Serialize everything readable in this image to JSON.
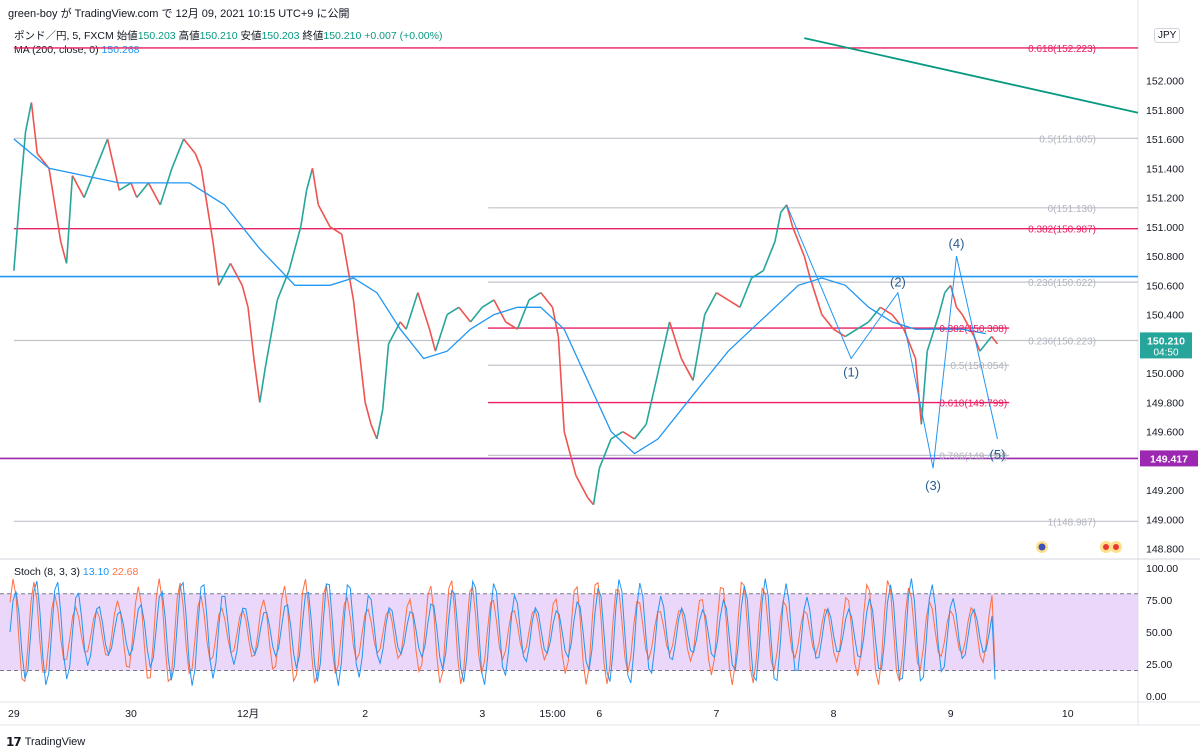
{
  "header": {
    "author": "green-boy",
    "text": "green-boy が TradingView.com で 12月 09, 2021 10:15 UTC+9 に公開"
  },
  "legend": {
    "symbol": "ポンド／円, 5, FXCM",
    "open_label": "始値",
    "open": "150.203",
    "high_label": "高値",
    "high": "150.210",
    "low_label": "安値",
    "low": "150.203",
    "close_label": "終値",
    "close": "150.210",
    "change": "+0.007 (+0.00%)",
    "ma_label": "MA (200, close, 0)",
    "ma_value": "150.268"
  },
  "currency": "JPY",
  "stoch_legend": {
    "label": "Stoch (8, 3, 3)",
    "k": "13.10",
    "d": "22.68"
  },
  "footer": {
    "brand": "TradingView"
  },
  "colors": {
    "up": "#26a69a",
    "down": "#ef5350",
    "ma": "#2196f3",
    "fib_red": "#e91e63",
    "fib_gray": "#b2b5be",
    "trend": "#089981",
    "level": "#9c27b0",
    "hline_blue": "#2196f3",
    "stoch_k": "#2196f3",
    "stoch_d": "#ff7043"
  },
  "chart_data": [
    {
      "type": "line",
      "title": "ポンド／円, 5, FXCM",
      "y_axis": {
        "range": [
          148.75,
          152.4
        ],
        "ticks": [
          "148.800",
          "149.000",
          "149.200",
          "149.400",
          "149.600",
          "149.800",
          "150.000",
          "150.200",
          "150.400",
          "150.600",
          "150.800",
          "151.000",
          "151.200",
          "151.400",
          "151.600",
          "151.800",
          "152.000"
        ]
      },
      "x_ticks": [
        {
          "label": "29",
          "x": 0.0
        },
        {
          "label": "30",
          "x": 1.0
        },
        {
          "label": "12月",
          "x": 2.0
        },
        {
          "label": "2",
          "x": 3.0
        },
        {
          "label": "3",
          "x": 4.0
        },
        {
          "label": "15:00",
          "x": 4.6
        },
        {
          "label": "6",
          "x": 5.0
        },
        {
          "label": "7",
          "x": 6.0
        },
        {
          "label": "8",
          "x": 7.0
        },
        {
          "label": "9",
          "x": 8.0
        },
        {
          "label": "10",
          "x": 9.0
        }
      ],
      "x_range": [
        -0.05,
        9.6
      ],
      "series": [
        {
          "name": "price",
          "points": [
            [
              0.0,
              150.7
            ],
            [
              0.05,
              151.2
            ],
            [
              0.1,
              151.65
            ],
            [
              0.15,
              151.85
            ],
            [
              0.2,
              151.5
            ],
            [
              0.3,
              151.4
            ],
            [
              0.4,
              150.9
            ],
            [
              0.45,
              150.75
            ],
            [
              0.5,
              151.35
            ],
            [
              0.6,
              151.2
            ],
            [
              0.7,
              151.4
            ],
            [
              0.8,
              151.6
            ],
            [
              0.9,
              151.25
            ],
            [
              1.0,
              151.3
            ],
            [
              1.05,
              151.2
            ],
            [
              1.15,
              151.3
            ],
            [
              1.25,
              151.15
            ],
            [
              1.35,
              151.4
            ],
            [
              1.45,
              151.6
            ],
            [
              1.55,
              151.5
            ],
            [
              1.6,
              151.4
            ],
            [
              1.7,
              150.9
            ],
            [
              1.75,
              150.6
            ],
            [
              1.85,
              150.75
            ],
            [
              1.95,
              150.6
            ],
            [
              2.0,
              150.45
            ],
            [
              2.05,
              150.1
            ],
            [
              2.1,
              149.8
            ],
            [
              2.15,
              150.05
            ],
            [
              2.25,
              150.5
            ],
            [
              2.35,
              150.7
            ],
            [
              2.45,
              151.0
            ],
            [
              2.5,
              151.25
            ],
            [
              2.55,
              151.4
            ],
            [
              2.6,
              151.15
            ],
            [
              2.7,
              151.0
            ],
            [
              2.8,
              150.95
            ],
            [
              2.9,
              150.5
            ],
            [
              2.95,
              150.15
            ],
            [
              3.0,
              149.8
            ],
            [
              3.05,
              149.65
            ],
            [
              3.1,
              149.55
            ],
            [
              3.15,
              149.75
            ],
            [
              3.2,
              150.2
            ],
            [
              3.3,
              150.35
            ],
            [
              3.35,
              150.3
            ],
            [
              3.45,
              150.55
            ],
            [
              3.55,
              150.3
            ],
            [
              3.6,
              150.15
            ],
            [
              3.7,
              150.4
            ],
            [
              3.8,
              150.45
            ],
            [
              3.9,
              150.35
            ],
            [
              4.0,
              150.45
            ],
            [
              4.1,
              150.5
            ],
            [
              4.2,
              150.35
            ],
            [
              4.3,
              150.3
            ],
            [
              4.4,
              150.5
            ],
            [
              4.5,
              150.55
            ],
            [
              4.6,
              150.45
            ],
            [
              4.65,
              150.25
            ],
            [
              4.7,
              149.6
            ],
            [
              4.8,
              149.3
            ],
            [
              4.9,
              149.15
            ],
            [
              4.95,
              149.1
            ],
            [
              5.0,
              149.35
            ],
            [
              5.1,
              149.55
            ],
            [
              5.2,
              149.6
            ],
            [
              5.3,
              149.55
            ],
            [
              5.4,
              149.65
            ],
            [
              5.5,
              150.0
            ],
            [
              5.6,
              150.35
            ],
            [
              5.7,
              150.1
            ],
            [
              5.8,
              149.95
            ],
            [
              5.9,
              150.4
            ],
            [
              6.0,
              150.55
            ],
            [
              6.1,
              150.5
            ],
            [
              6.2,
              150.45
            ],
            [
              6.3,
              150.65
            ],
            [
              6.4,
              150.7
            ],
            [
              6.5,
              150.9
            ],
            [
              6.55,
              151.1
            ],
            [
              6.6,
              151.15
            ],
            [
              6.65,
              151.0
            ],
            [
              6.75,
              150.8
            ],
            [
              6.8,
              150.65
            ],
            [
              6.9,
              150.4
            ],
            [
              7.0,
              150.3
            ],
            [
              7.1,
              150.25
            ],
            [
              7.2,
              150.3
            ],
            [
              7.3,
              150.35
            ],
            [
              7.4,
              150.45
            ],
            [
              7.5,
              150.4
            ],
            [
              7.6,
              150.3
            ],
            [
              7.7,
              150.1
            ],
            [
              7.75,
              149.65
            ],
            [
              7.8,
              150.15
            ],
            [
              7.9,
              150.4
            ],
            [
              7.95,
              150.55
            ],
            [
              8.0,
              150.6
            ],
            [
              8.05,
              150.45
            ],
            [
              8.1,
              150.4
            ],
            [
              8.2,
              150.25
            ],
            [
              8.25,
              150.15
            ],
            [
              8.3,
              150.2
            ],
            [
              8.35,
              150.25
            ],
            [
              8.4,
              150.2
            ]
          ]
        },
        {
          "name": "MA (200, close, 0)",
          "points": [
            [
              0.0,
              151.6
            ],
            [
              0.3,
              151.4
            ],
            [
              0.6,
              151.35
            ],
            [
              0.9,
              151.3
            ],
            [
              1.2,
              151.3
            ],
            [
              1.5,
              151.3
            ],
            [
              1.8,
              151.15
            ],
            [
              2.1,
              150.85
            ],
            [
              2.4,
              150.6
            ],
            [
              2.7,
              150.6
            ],
            [
              2.9,
              150.65
            ],
            [
              3.1,
              150.55
            ],
            [
              3.3,
              150.3
            ],
            [
              3.5,
              150.1
            ],
            [
              3.7,
              150.15
            ],
            [
              3.9,
              150.3
            ],
            [
              4.1,
              150.4
            ],
            [
              4.3,
              150.45
            ],
            [
              4.5,
              150.45
            ],
            [
              4.7,
              150.3
            ],
            [
              4.9,
              149.95
            ],
            [
              5.1,
              149.6
            ],
            [
              5.3,
              149.45
            ],
            [
              5.5,
              149.55
            ],
            [
              5.7,
              149.75
            ],
            [
              5.9,
              149.95
            ],
            [
              6.1,
              150.15
            ],
            [
              6.3,
              150.3
            ],
            [
              6.5,
              150.45
            ],
            [
              6.7,
              150.6
            ],
            [
              6.9,
              150.65
            ],
            [
              7.1,
              150.6
            ],
            [
              7.3,
              150.45
            ],
            [
              7.5,
              150.35
            ],
            [
              7.7,
              150.3
            ],
            [
              7.9,
              150.3
            ],
            [
              8.1,
              150.3
            ],
            [
              8.3,
              150.27
            ]
          ]
        },
        {
          "name": "wave",
          "labels": [
            "(1)",
            "(2)",
            "(3)",
            "(4)",
            "(5)"
          ],
          "points": [
            [
              6.6,
              151.15
            ],
            [
              7.15,
              150.1
            ],
            [
              7.55,
              150.55
            ],
            [
              7.85,
              149.35
            ],
            [
              8.05,
              150.8
            ],
            [
              8.4,
              149.55
            ]
          ]
        }
      ],
      "fib_levels": [
        {
          "label": "0.618(152.223)",
          "y": 152.223,
          "color": "red",
          "x0": 0.0,
          "x1": 9.6
        },
        {
          "label": "0.5(151.605)",
          "y": 151.605,
          "color": "gray",
          "x0": 0.0,
          "x1": 9.6
        },
        {
          "label": "0(151.130)",
          "y": 151.13,
          "color": "gray",
          "x0": 4.05,
          "x1": 9.6
        },
        {
          "label": "0.382(150.987)",
          "y": 150.987,
          "color": "red",
          "x0": 0.0,
          "x1": 9.6
        },
        {
          "label": "0.236(150.622)",
          "y": 150.622,
          "color": "gray",
          "x0": 4.05,
          "x1": 9.6
        },
        {
          "label": "0.382(150.308)",
          "y": 150.308,
          "color": "red",
          "x0": 4.05,
          "x1": 8.5
        },
        {
          "label": "0.236(150.223)",
          "y": 150.223,
          "color": "gray",
          "x0": 0.0,
          "x1": 9.6
        },
        {
          "label": "0.5(150.054)",
          "y": 150.054,
          "color": "gray",
          "x0": 4.05,
          "x1": 8.5
        },
        {
          "label": "0.618(149.799)",
          "y": 149.799,
          "color": "red",
          "x0": 4.05,
          "x1": 8.5
        },
        {
          "label": "0.786(149.438)",
          "y": 149.438,
          "color": "gray",
          "x0": 4.05,
          "x1": 8.5
        },
        {
          "label": "1(148.987)",
          "y": 148.987,
          "color": "gray",
          "x0": 0.0,
          "x1": 9.6
        }
      ],
      "horizontal_lines": [
        {
          "y": 150.66,
          "color": "blue"
        },
        {
          "y": 149.417,
          "color": "purple",
          "price_label": "149.417"
        }
      ],
      "trend_line": [
        [
          6.75,
          152.29
        ],
        [
          9.6,
          151.78
        ]
      ],
      "last_price": {
        "value": "150.210",
        "countdown": "04:50"
      }
    },
    {
      "type": "line",
      "title": "Stoch (8, 3, 3)",
      "y_axis": {
        "range": [
          -3,
          104
        ],
        "ticks": [
          "0.00",
          "25.00",
          "50.00",
          "75.00",
          "100.00"
        ]
      },
      "band": [
        20,
        80
      ],
      "series": [
        {
          "name": "K",
          "last": 13.1
        },
        {
          "name": "D",
          "last": 22.68
        }
      ]
    }
  ]
}
